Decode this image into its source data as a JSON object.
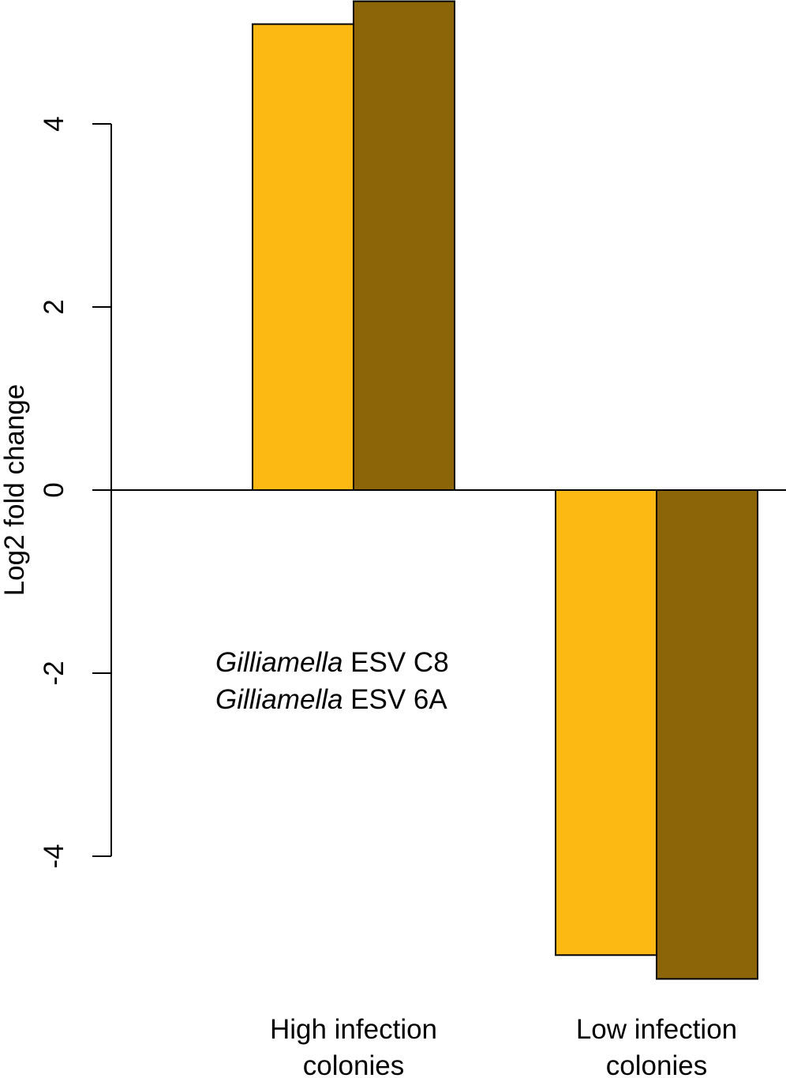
{
  "chart_data": {
    "type": "bar",
    "y_label": "Log2 fold change",
    "categories": [
      "High infection colonies",
      "Low infection colonies"
    ],
    "series": [
      {
        "name": "Gilliamella ESV C8",
        "color": "#fdb913",
        "values": [
          5.09,
          -5.08
        ]
      },
      {
        "name": "Gilliamella ESV 6A",
        "color": "#8b6508",
        "values": [
          5.34,
          -5.34
        ]
      }
    ],
    "ylim": [
      -5.5,
      5.35
    ],
    "yticks": [
      -4,
      -2,
      0,
      2,
      4
    ]
  }
}
